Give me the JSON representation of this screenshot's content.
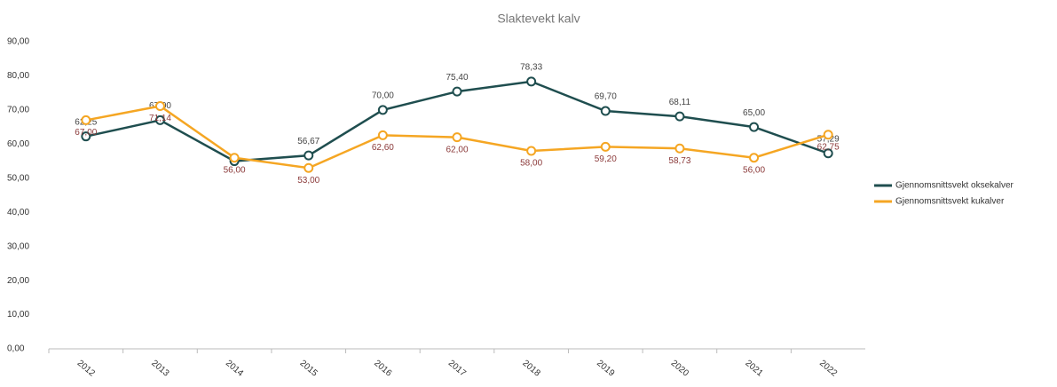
{
  "chart_data": {
    "type": "line",
    "title": "Slaktevekt kalv",
    "categories": [
      "2012",
      "2013",
      "2014",
      "2015",
      "2016",
      "2017",
      "2018",
      "2019",
      "2020",
      "2021",
      "2022"
    ],
    "series": [
      {
        "name": "Gjennomsnittsvekt oksekalver",
        "color": "#1f4e4f",
        "values": [
          62.25,
          67.0,
          55,
          56.67,
          70.0,
          75.4,
          78.33,
          69.7,
          68.11,
          65.0,
          57.29
        ],
        "value_labels": [
          "62,25",
          "67,00",
          null,
          "56,67",
          "70,00",
          "75,40",
          "78,33",
          "69,70",
          "68,11",
          "65,00",
          "57,29"
        ]
      },
      {
        "name": "Gjennomsnittsvekt kukalver",
        "color": "#f5a623",
        "values": [
          67.0,
          71.14,
          56.0,
          53.0,
          62.6,
          62.0,
          58.0,
          59.2,
          58.73,
          56.0,
          62.75
        ],
        "value_labels": [
          "67,00",
          "71,14",
          "56,00",
          "53,00",
          "62,60",
          "62,00",
          "58,00",
          "59,20",
          "58,73",
          "56,00",
          "62,75"
        ]
      }
    ],
    "ylim": [
      0,
      90
    ],
    "yticks": [
      {
        "value": 0,
        "label": "0,00"
      },
      {
        "value": 10,
        "label": "10,00"
      },
      {
        "value": 20,
        "label": "20,00"
      },
      {
        "value": 30,
        "label": "30,00"
      },
      {
        "value": 40,
        "label": "40,00"
      },
      {
        "value": 50,
        "label": "50,00"
      },
      {
        "value": 60,
        "label": "60,00"
      },
      {
        "value": 70,
        "label": "70,00"
      },
      {
        "value": 80,
        "label": "80,00"
      },
      {
        "value": 90,
        "label": "90,00"
      }
    ],
    "legend": "right"
  }
}
